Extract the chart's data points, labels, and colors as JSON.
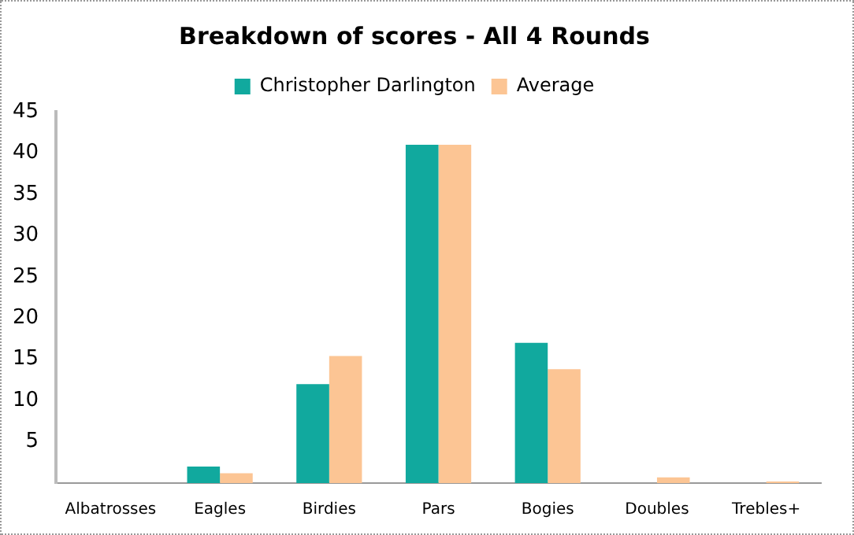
{
  "chart_data": {
    "type": "bar",
    "title": "Breakdown of scores - All 4 Rounds",
    "categories": [
      "Albatrosses",
      "Eagles",
      "Birdies",
      "Pars",
      "Bogies",
      "Doubles",
      "Trebles+"
    ],
    "series": [
      {
        "name": "Christopher Darlington",
        "color": "#11a99e",
        "values": [
          0,
          2,
          12,
          41,
          17,
          0,
          0
        ]
      },
      {
        "name": "Average",
        "color": "#fcc594",
        "values": [
          0,
          1.2,
          15.4,
          41,
          13.8,
          0.7,
          0.2
        ]
      }
    ],
    "ylim": [
      0,
      45
    ],
    "yticks": [
      5,
      10,
      15,
      20,
      25,
      30,
      35,
      40,
      45
    ],
    "grid": false,
    "legend": "top"
  }
}
